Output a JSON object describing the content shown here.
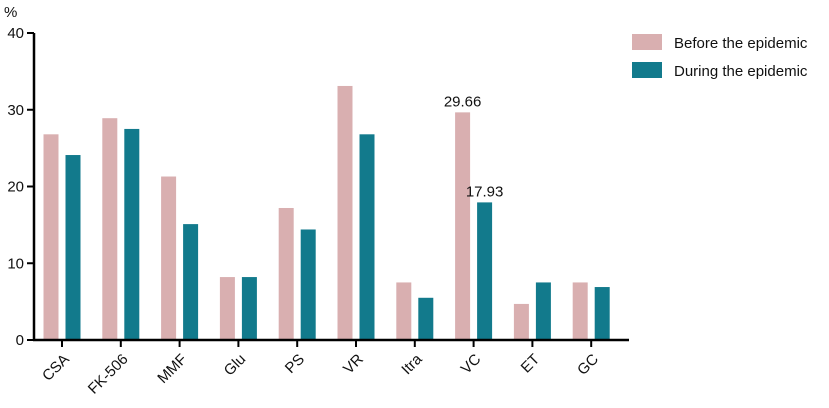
{
  "chart_data": {
    "type": "bar",
    "y_unit": "%",
    "ylim": [
      0,
      40
    ],
    "yticks": [
      0,
      10,
      20,
      30,
      40
    ],
    "grid": false,
    "legend_position": "top-right",
    "categories": [
      "CSA",
      "FK-506",
      "MMF",
      "Glu",
      "PS",
      "VR",
      "Itra",
      "VC",
      "ET",
      "GC"
    ],
    "series": [
      {
        "name": "Before the epidemic",
        "color": "#D9AFB0",
        "values": [
          26.8,
          28.9,
          21.3,
          8.2,
          17.2,
          33.1,
          7.5,
          29.66,
          4.7,
          7.5
        ]
      },
      {
        "name": "During the epidemic",
        "color": "#127A8C",
        "values": [
          24.1,
          27.5,
          15.1,
          8.2,
          14.4,
          26.8,
          5.5,
          17.93,
          7.5,
          6.9
        ]
      }
    ],
    "annotations": [
      {
        "category": "VC",
        "series": 0,
        "text": "29.66"
      },
      {
        "category": "VC",
        "series": 1,
        "text": "17.93"
      }
    ]
  }
}
